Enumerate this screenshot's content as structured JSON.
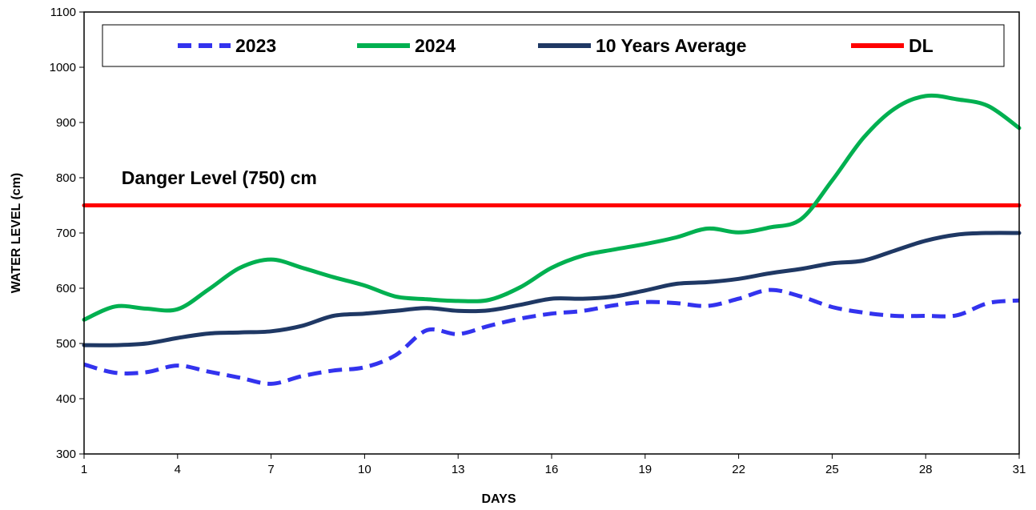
{
  "chart_data": {
    "type": "line",
    "title": "",
    "xlabel": "DAYS",
    "ylabel": "WATER LEVEL (cm)",
    "xlim": [
      1,
      31
    ],
    "ylim": [
      300,
      1100
    ],
    "x_ticks": [
      1,
      4,
      7,
      10,
      13,
      16,
      19,
      22,
      25,
      28,
      31
    ],
    "y_ticks": [
      300,
      400,
      500,
      600,
      700,
      800,
      900,
      1000,
      1100
    ],
    "grid": false,
    "legend_position": "top",
    "x": [
      1,
      2,
      3,
      4,
      5,
      6,
      7,
      8,
      9,
      10,
      11,
      12,
      13,
      14,
      15,
      16,
      17,
      18,
      19,
      20,
      21,
      22,
      23,
      24,
      25,
      26,
      27,
      28,
      29,
      30,
      31
    ],
    "series": [
      {
        "name": "2023",
        "color": "#3333ee",
        "style": "dashed",
        "values": [
          462,
          447,
          448,
          460,
          449,
          438,
          427,
          441,
          451,
          457,
          479,
          524,
          517,
          532,
          545,
          554,
          559,
          569,
          575,
          573,
          568,
          581,
          597,
          585,
          566,
          556,
          550,
          550,
          551,
          573,
          578
        ]
      },
      {
        "name": "2024",
        "color": "#00b050",
        "style": "solid",
        "values": [
          543,
          567,
          563,
          562,
          598,
          637,
          652,
          637,
          620,
          605,
          585,
          580,
          577,
          579,
          602,
          637,
          659,
          670,
          680,
          692,
          708,
          701,
          710,
          725,
          795,
          872,
          925,
          948,
          942,
          930,
          890
        ]
      },
      {
        "name": "10 Years Average",
        "color": "#1f3864",
        "style": "solid",
        "values": [
          497,
          497,
          500,
          510,
          518,
          520,
          522,
          532,
          550,
          554,
          559,
          564,
          559,
          560,
          570,
          581,
          581,
          585,
          596,
          608,
          611,
          617,
          627,
          635,
          645,
          650,
          668,
          686,
          697,
          700,
          700
        ]
      },
      {
        "name": "DL",
        "color": "#ff0000",
        "style": "solid",
        "values": [
          750,
          750,
          750,
          750,
          750,
          750,
          750,
          750,
          750,
          750,
          750,
          750,
          750,
          750,
          750,
          750,
          750,
          750,
          750,
          750,
          750,
          750,
          750,
          750,
          750,
          750,
          750,
          750,
          750,
          750,
          750
        ]
      }
    ],
    "annotations": [
      {
        "text": "Danger Level (750) cm",
        "x": 2.2,
        "y": 800
      }
    ]
  }
}
